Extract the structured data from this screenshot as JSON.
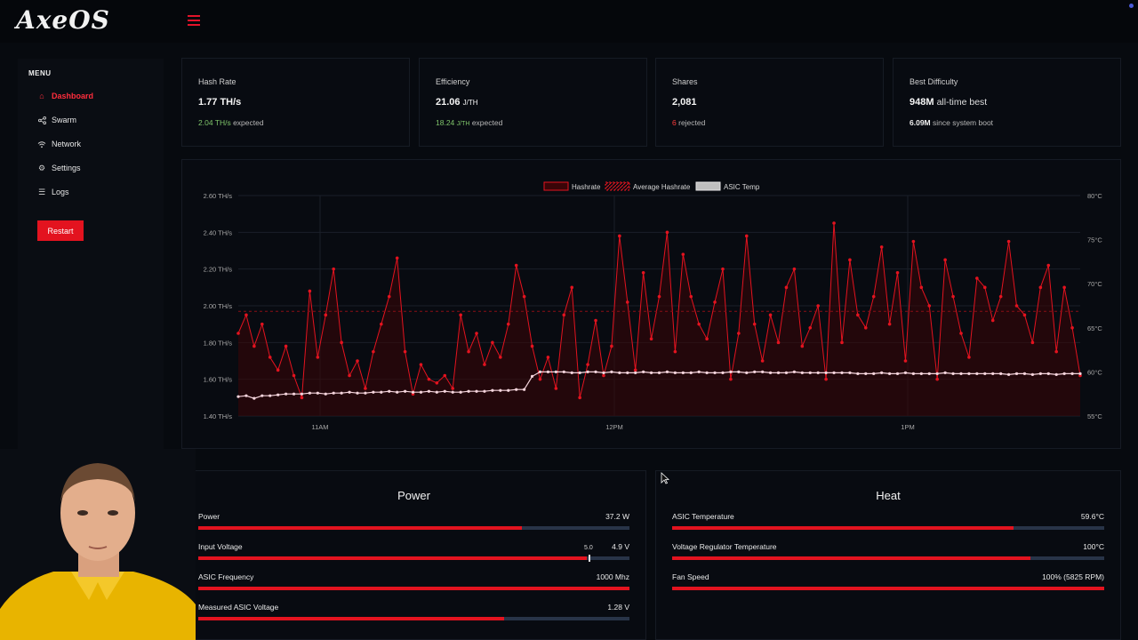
{
  "app": {
    "logo_text": "AxeOS"
  },
  "sidebar": {
    "menu_title": "MENU",
    "items": [
      {
        "label": "Dashboard",
        "icon": "home-icon",
        "active": true
      },
      {
        "label": "Swarm",
        "icon": "share-icon",
        "active": false
      },
      {
        "label": "Network",
        "icon": "wifi-icon",
        "active": false
      },
      {
        "label": "Settings",
        "icon": "gear-icon",
        "active": false
      },
      {
        "label": "Logs",
        "icon": "list-icon",
        "active": false
      }
    ],
    "restart_label": "Restart"
  },
  "stats": {
    "hash_rate": {
      "label": "Hash Rate",
      "value": "1.77 TH/s",
      "expected_value": "2.04 TH/s",
      "expected_suffix": "expected"
    },
    "efficiency": {
      "label": "Efficiency",
      "value": "21.06",
      "unit": "J/TH",
      "expected_value": "18.24",
      "expected_unit": "J/TH",
      "expected_suffix": "expected"
    },
    "shares": {
      "label": "Shares",
      "value": "2,081",
      "rejected_value": "6",
      "rejected_suffix": "rejected"
    },
    "best_difficulty": {
      "label": "Best Difficulty",
      "value": "948M",
      "value_suffix": "all-time best",
      "boot_value": "6.09M",
      "boot_suffix": "since system boot"
    }
  },
  "chart_data": {
    "type": "line",
    "legend": [
      "Hashrate",
      "Average Hashrate",
      "ASIC Temp"
    ],
    "legend_position": "top",
    "y_left_ticks": [
      "2.60 TH/s",
      "2.40 TH/s",
      "2.20 TH/s",
      "2.00 TH/s",
      "1.80 TH/s",
      "1.60 TH/s",
      "1.40 TH/s"
    ],
    "y_left_range": [
      1.4,
      2.6
    ],
    "y_right_ticks": [
      "80°C",
      "75°C",
      "70°C",
      "65°C",
      "60°C",
      "55°C"
    ],
    "y_right_range": [
      55,
      80
    ],
    "x_ticks": [
      "11AM",
      "12PM",
      "1PM"
    ],
    "average_hashrate": 1.97,
    "series": [
      {
        "name": "Hashrate",
        "values": [
          1.85,
          1.95,
          1.78,
          1.9,
          1.72,
          1.65,
          1.78,
          1.62,
          1.5,
          2.08,
          1.72,
          1.95,
          2.2,
          1.8,
          1.62,
          1.7,
          1.55,
          1.75,
          1.9,
          2.05,
          2.26,
          1.75,
          1.52,
          1.68,
          1.6,
          1.58,
          1.62,
          1.55,
          1.95,
          1.75,
          1.85,
          1.68,
          1.8,
          1.72,
          1.9,
          2.22,
          2.05,
          1.78,
          1.6,
          1.72,
          1.55,
          1.95,
          2.1,
          1.5,
          1.68,
          1.92,
          1.62,
          1.78,
          2.38,
          2.02,
          1.65,
          2.18,
          1.82,
          2.05,
          2.4,
          1.75,
          2.28,
          2.05,
          1.9,
          1.82,
          2.02,
          2.2,
          1.6,
          1.85,
          2.38,
          1.9,
          1.7,
          1.95,
          1.8,
          2.1,
          2.2,
          1.78,
          1.88,
          2.0,
          1.6,
          2.45,
          1.8,
          2.25,
          1.95,
          1.88,
          2.05,
          2.32,
          1.9,
          2.18,
          1.7,
          2.35,
          2.1,
          2.0,
          1.6,
          2.25,
          2.05,
          1.85,
          1.72,
          2.15,
          2.1,
          1.92,
          2.05,
          2.35,
          2.0,
          1.95,
          1.8,
          2.1,
          2.22,
          1.75,
          2.1,
          1.88,
          1.62
        ]
      },
      {
        "name": "ASIC Temp",
        "values": [
          57.2,
          57.3,
          57.0,
          57.3,
          57.3,
          57.4,
          57.5,
          57.5,
          57.5,
          57.6,
          57.6,
          57.5,
          57.6,
          57.6,
          57.7,
          57.6,
          57.6,
          57.7,
          57.7,
          57.8,
          57.7,
          57.8,
          57.7,
          57.7,
          57.8,
          57.7,
          57.8,
          57.7,
          57.7,
          57.8,
          57.8,
          57.8,
          57.9,
          57.9,
          57.9,
          58.0,
          58.0,
          59.5,
          60.0,
          60.0,
          60.0,
          60.0,
          59.9,
          59.9,
          60.0,
          60.0,
          59.9,
          60.0,
          59.9,
          59.9,
          59.9,
          60.0,
          59.9,
          59.9,
          60.0,
          59.9,
          59.9,
          59.9,
          60.0,
          59.9,
          59.9,
          59.9,
          60.0,
          60.0,
          59.9,
          60.0,
          60.0,
          59.9,
          59.9,
          59.9,
          60.0,
          59.9,
          59.9,
          59.9,
          59.9,
          59.9,
          59.9,
          59.9,
          59.8,
          59.8,
          59.8,
          59.9,
          59.8,
          59.8,
          59.9,
          59.8,
          59.8,
          59.8,
          59.8,
          59.9,
          59.8,
          59.8,
          59.8,
          59.8,
          59.8,
          59.8,
          59.8,
          59.7,
          59.8,
          59.8,
          59.7,
          59.8,
          59.8,
          59.7,
          59.8,
          59.8,
          59.8
        ]
      }
    ],
    "colors": {
      "hashrate": "#e3131f",
      "temp": "#f4d4dc",
      "grid": "#1a1f29"
    }
  },
  "power": {
    "title": "Power",
    "rows": [
      {
        "label": "Power",
        "value": "37.2 W",
        "fill": 0.75
      },
      {
        "label": "Input Voltage",
        "value": "4.9 V",
        "fill": 0.9,
        "marker": 0.905,
        "marker_label": "5.0"
      },
      {
        "label": "ASIC Frequency",
        "value": "1000 Mhz",
        "fill": 1.0
      },
      {
        "label": "Measured ASIC Voltage",
        "value": "1.28 V",
        "fill": 0.71
      }
    ]
  },
  "heat": {
    "title": "Heat",
    "rows": [
      {
        "label": "ASIC Temperature",
        "value": "59.6°C",
        "fill": 0.79
      },
      {
        "label": "Voltage Regulator Temperature",
        "value": "100°C",
        "fill": 0.83
      },
      {
        "label": "Fan Speed",
        "value": "100% (5825 RPM)",
        "fill": 1.0
      }
    ]
  }
}
